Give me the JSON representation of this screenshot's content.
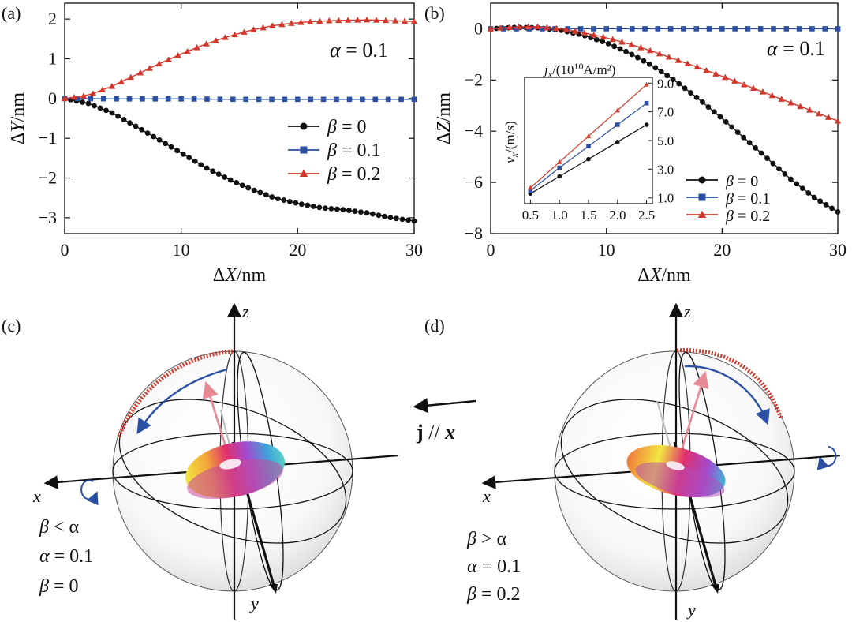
{
  "colors": {
    "black": "#111111",
    "blue": "#2b4fa2",
    "red": "#d2382b"
  },
  "panel_labels": {
    "a": "(a)",
    "b": "(b)",
    "c": "(c)",
    "d": "(d)"
  },
  "chart_data": [
    {
      "id": "a",
      "type": "line",
      "title": "",
      "xlabel_var": "ΔX",
      "xlabel_unit": "/nm",
      "ylabel_var": "ΔY",
      "ylabel_unit": "/nm",
      "xlim": [
        0,
        30
      ],
      "ylim": [
        -3.4,
        2.4
      ],
      "xticks": [
        0,
        10,
        20,
        30
      ],
      "xtick_labels": [
        "0",
        "10",
        "20",
        "30"
      ],
      "yticks": [
        -3,
        -2,
        -1,
        0,
        1,
        2
      ],
      "ytick_labels": [
        "−3",
        "−2",
        "−1",
        "0",
        "1",
        "2"
      ],
      "annotation": {
        "var": "α",
        "text": " = 0.1"
      },
      "series": [
        {
          "name": "β = 0",
          "var": "β",
          "eq": " = 0",
          "color": "#111111",
          "marker": "circle",
          "x": [
            0,
            2,
            4,
            6,
            8,
            10,
            12,
            14,
            16,
            18,
            20,
            22,
            24,
            26,
            28,
            30
          ],
          "y": [
            0,
            -0.12,
            -0.35,
            -0.68,
            -1.02,
            -1.37,
            -1.72,
            -2.02,
            -2.28,
            -2.5,
            -2.64,
            -2.75,
            -2.8,
            -2.88,
            -3.0,
            -3.08
          ]
        },
        {
          "name": "β = 0.1",
          "var": "β",
          "eq": " = 0.1",
          "color": "#2b4fa2",
          "marker": "square",
          "x": [
            0,
            5,
            10,
            15,
            20,
            25,
            30
          ],
          "y": [
            0,
            -0.01,
            -0.01,
            -0.02,
            -0.02,
            -0.02,
            -0.02
          ]
        },
        {
          "name": "β = 0.2",
          "var": "β",
          "eq": " = 0.2",
          "color": "#d2382b",
          "marker": "triangle",
          "x": [
            0,
            2,
            4,
            6,
            8,
            10,
            12,
            14,
            16,
            18,
            20,
            22,
            24,
            26,
            28,
            30
          ],
          "y": [
            0,
            0.08,
            0.3,
            0.58,
            0.86,
            1.12,
            1.36,
            1.56,
            1.72,
            1.84,
            1.91,
            1.95,
            1.97,
            1.98,
            1.96,
            1.94
          ]
        }
      ],
      "legend": "lower-right"
    },
    {
      "id": "b",
      "type": "line",
      "title": "",
      "xlabel_var": "ΔX",
      "xlabel_unit": "/nm",
      "ylabel_var": "ΔZ",
      "ylabel_unit": "/nm",
      "xlim": [
        0,
        30
      ],
      "ylim": [
        -8,
        1
      ],
      "xticks": [
        0,
        10,
        20,
        30
      ],
      "xtick_labels": [
        "0",
        "10",
        "20",
        "30"
      ],
      "yticks": [
        -8,
        -6,
        -4,
        -2,
        0
      ],
      "ytick_labels": [
        "−8",
        "−6",
        "−4",
        "−2",
        "0"
      ],
      "annotation": {
        "var": "α",
        "text": " = 0.1"
      },
      "series": [
        {
          "name": "β = 0",
          "var": "β",
          "eq": " = 0",
          "color": "#111111",
          "marker": "circle",
          "x": [
            0,
            2,
            4,
            6,
            8,
            10,
            12,
            14,
            16,
            18,
            20,
            22,
            24,
            26,
            28,
            30
          ],
          "y": [
            0,
            0.05,
            0.04,
            -0.05,
            -0.25,
            -0.55,
            -0.95,
            -1.45,
            -2.05,
            -2.75,
            -3.5,
            -4.3,
            -5.1,
            -5.9,
            -6.6,
            -7.15
          ]
        },
        {
          "name": "β = 0.1",
          "var": "β",
          "eq": " = 0.1",
          "color": "#2b4fa2",
          "marker": "square",
          "x": [
            0,
            5,
            10,
            15,
            20,
            25,
            30
          ],
          "y": [
            0,
            0,
            0,
            0,
            0,
            0,
            0
          ]
        },
        {
          "name": "β = 0.2",
          "var": "β",
          "eq": " = 0.2",
          "color": "#d2382b",
          "marker": "triangle",
          "x": [
            0,
            2,
            4,
            6,
            8,
            10,
            12,
            14,
            16,
            18,
            20,
            22,
            24,
            26,
            28,
            30
          ],
          "y": [
            0,
            0.07,
            0.08,
            0.0,
            -0.15,
            -0.35,
            -0.6,
            -0.88,
            -1.2,
            -1.52,
            -1.85,
            -2.2,
            -2.55,
            -2.9,
            -3.25,
            -3.6
          ]
        }
      ],
      "legend": "lower-right"
    },
    {
      "id": "b-inset",
      "type": "line",
      "title": "",
      "top_label_var": "j",
      "top_label_sub": "x",
      "top_label_unit": "/(10",
      "top_label_sup": "10",
      "top_label_end": "A/m²)",
      "ylabel_var": "v",
      "ylabel_sub": "x",
      "ylabel_unit": "/(m/s)",
      "xlim": [
        0.4,
        2.6
      ],
      "ylim": [
        0.6,
        9.4
      ],
      "xticks": [
        0.5,
        1.0,
        1.5,
        2.0,
        2.5
      ],
      "xtick_labels": [
        "0.5",
        "1.0",
        "1.5",
        "2.0",
        "2.5"
      ],
      "yticks": [
        1,
        3,
        5,
        7,
        9
      ],
      "ytick_labels": [
        "1.0",
        "3.0",
        "5.0",
        "7.0",
        "9.0"
      ],
      "series": [
        {
          "name": "β = 0",
          "color": "#111111",
          "marker": "circle",
          "x": [
            0.5,
            1.0,
            1.5,
            2.0,
            2.5
          ],
          "y": [
            1.3,
            2.5,
            3.7,
            4.9,
            6.1
          ]
        },
        {
          "name": "β = 0.1",
          "color": "#2b4fa2",
          "marker": "square",
          "x": [
            0.5,
            1.0,
            1.5,
            2.0,
            2.5
          ],
          "y": [
            1.5,
            3.1,
            4.6,
            6.1,
            7.6
          ]
        },
        {
          "name": "β = 0.2",
          "color": "#d2382b",
          "marker": "triangle",
          "x": [
            0.5,
            1.0,
            1.5,
            2.0,
            2.5
          ],
          "y": [
            1.7,
            3.5,
            5.3,
            7.1,
            8.9
          ]
        }
      ]
    }
  ],
  "bloch": {
    "c": {
      "axis_x": "x",
      "axis_y": "y",
      "axis_z": "z",
      "cond": [
        {
          "v": "β",
          "t": " < α"
        },
        {
          "v": "α",
          "t": " = 0.1"
        },
        {
          "v": "β",
          "t": " = 0"
        }
      ]
    },
    "d": {
      "axis_x": "x",
      "axis_y": "y",
      "axis_z": "z",
      "cond": [
        {
          "v": "β",
          "t": " > α"
        },
        {
          "v": "α",
          "t": " = 0.1"
        },
        {
          "v": "β",
          "t": " = 0.2"
        }
      ]
    }
  },
  "current": {
    "j": "j",
    "rest": " // ",
    "x": "x"
  }
}
